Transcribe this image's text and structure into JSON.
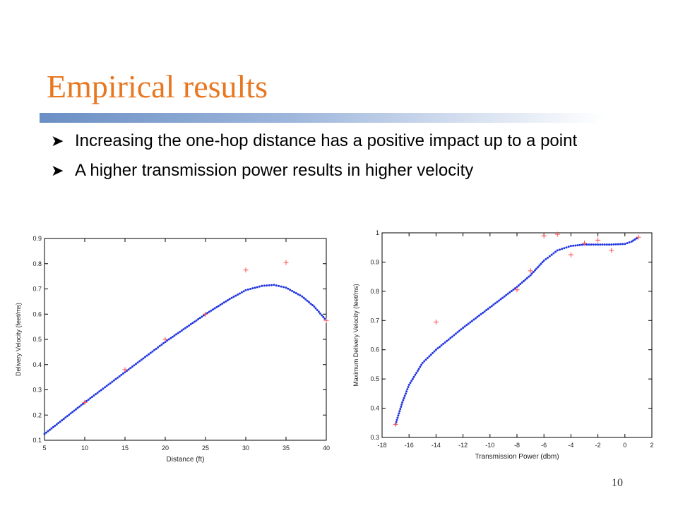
{
  "slide": {
    "title": "Empirical results",
    "bullets": [
      "Increasing the one-hop distance has a positive impact up to a point",
      "A higher transmission power results in higher velocity"
    ],
    "page_number": "10"
  },
  "colors": {
    "title": "#e87722",
    "points": "#ff4d4d",
    "fit": "#1f33e0"
  },
  "chart_data": [
    {
      "type": "scatter",
      "xlabel": "Distance (ft)",
      "ylabel": "Delivery Velocity (feet/ms)",
      "xlim": [
        5,
        40
      ],
      "ylim": [
        0.1,
        0.9
      ],
      "xticks": [
        "5",
        "10",
        "15",
        "20",
        "25",
        "30",
        "35",
        "40"
      ],
      "yticks": [
        "0.1",
        "0.2",
        "0.3",
        "0.4",
        "0.5",
        "0.6",
        "0.7",
        "0.8",
        "0.9"
      ],
      "points": [
        [
          10,
          0.25
        ],
        [
          15,
          0.38
        ],
        [
          20,
          0.5
        ],
        [
          25,
          0.6
        ],
        [
          30,
          0.775
        ],
        [
          35,
          0.805
        ],
        [
          40,
          0.575
        ]
      ],
      "fit": [
        [
          5,
          0.125
        ],
        [
          10,
          0.25
        ],
        [
          15,
          0.37
        ],
        [
          20,
          0.49
        ],
        [
          25,
          0.6
        ],
        [
          28,
          0.66
        ],
        [
          30,
          0.695
        ],
        [
          32,
          0.712
        ],
        [
          33.5,
          0.716
        ],
        [
          35,
          0.705
        ],
        [
          37,
          0.67
        ],
        [
          38.5,
          0.63
        ],
        [
          40,
          0.575
        ]
      ]
    },
    {
      "type": "scatter",
      "xlabel": "Transmission Power (dbm)",
      "ylabel": "Maximum Delivery Velocity (feet/ms)",
      "xlim": [
        -18,
        2
      ],
      "ylim": [
        0.3,
        1.0
      ],
      "xticks": [
        "-18",
        "-16",
        "-14",
        "-12",
        "-10",
        "-8",
        "-6",
        "-4",
        "-2",
        "0",
        "2"
      ],
      "yticks": [
        "0.3",
        "0.4",
        "0.5",
        "0.6",
        "0.7",
        "0.8",
        "0.9",
        "1"
      ],
      "points": [
        [
          -17,
          0.345
        ],
        [
          -14,
          0.695
        ],
        [
          -8,
          0.805
        ],
        [
          -7,
          0.87
        ],
        [
          -6,
          0.99
        ],
        [
          -5,
          0.995
        ],
        [
          -4,
          0.925
        ],
        [
          -3,
          0.965
        ],
        [
          -2,
          0.975
        ],
        [
          -1,
          0.94
        ],
        [
          1,
          0.985
        ]
      ],
      "fit": [
        [
          -17,
          0.345
        ],
        [
          -16.5,
          0.42
        ],
        [
          -16,
          0.48
        ],
        [
          -15,
          0.555
        ],
        [
          -14,
          0.6
        ],
        [
          -12,
          0.675
        ],
        [
          -10,
          0.745
        ],
        [
          -8,
          0.815
        ],
        [
          -7,
          0.855
        ],
        [
          -6,
          0.905
        ],
        [
          -5,
          0.94
        ],
        [
          -4,
          0.955
        ],
        [
          -3,
          0.96
        ],
        [
          -2,
          0.96
        ],
        [
          -1,
          0.96
        ],
        [
          0,
          0.962
        ],
        [
          0.5,
          0.97
        ],
        [
          1,
          0.985
        ]
      ]
    }
  ]
}
